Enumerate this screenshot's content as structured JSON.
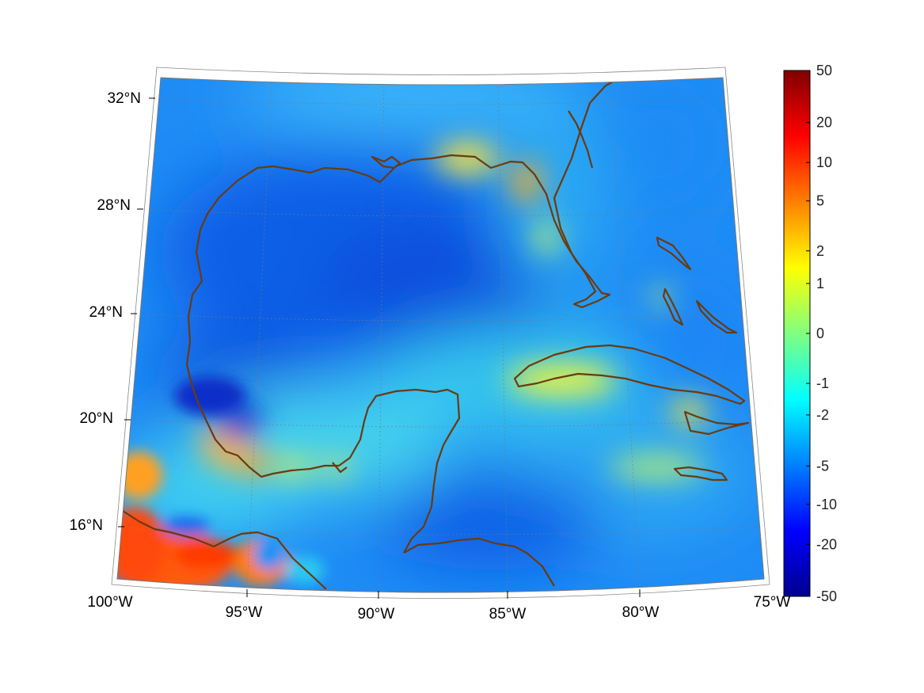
{
  "map": {
    "region": "Gulf of Mexico and Caribbean",
    "projection": "conic",
    "lon_range": [
      -100,
      -75
    ],
    "lat_range": [
      14,
      33
    ],
    "longitude_labels": [
      {
        "lon": -100,
        "text": "100°W"
      },
      {
        "lon": -95,
        "text": "95°W"
      },
      {
        "lon": -90,
        "text": "90°W"
      },
      {
        "lon": -85,
        "text": "85°W"
      },
      {
        "lon": -80,
        "text": "80°W"
      },
      {
        "lon": -75,
        "text": "75°W"
      }
    ],
    "latitude_labels": [
      {
        "lat": 32,
        "text": "32°N"
      },
      {
        "lat": 28,
        "text": "28°N"
      },
      {
        "lat": 24,
        "text": "24°N"
      },
      {
        "lat": 20,
        "text": "20°N"
      },
      {
        "lat": 16,
        "text": "16°N"
      }
    ],
    "gridlines": "dotted",
    "coastline_color": "#6b3a10",
    "colormap": "jet"
  },
  "colorbar": {
    "ticks": [
      "50",
      "20",
      "10",
      "5",
      "2",
      "1",
      "0",
      "-1",
      "-2",
      "-5",
      "-10",
      "-20",
      "-50"
    ],
    "range": [
      -50,
      50
    ],
    "colors": [
      "#00008f",
      "#0000ff",
      "#0080ff",
      "#00ffff",
      "#80ff80",
      "#ffff00",
      "#ff8000",
      "#ff0000",
      "#800000"
    ]
  }
}
